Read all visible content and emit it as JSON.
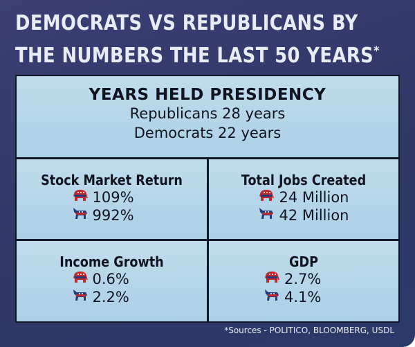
{
  "title": {
    "line1": "DEMOCRATS VS REPUBLICANS BY",
    "line2": "THE NUMBERS THE LAST 50 YEARS",
    "asterisk": "*"
  },
  "presidency": {
    "heading": "YEARS HELD PRESIDENCY",
    "republicans": "Republicans 28 years",
    "democrats": "Democrats 22 years"
  },
  "stats": [
    {
      "label": "Stock Market Return",
      "republican": "109%",
      "democrat": "992%"
    },
    {
      "label": "Total Jobs Created",
      "republican": "24 Million",
      "democrat": "42 Million"
    },
    {
      "label": "Income Growth",
      "republican": "0.6%",
      "democrat": "2.2%"
    },
    {
      "label": "GDP",
      "republican": "2.7%",
      "democrat": "4.1%"
    }
  ],
  "icons": {
    "republican": "elephant-icon",
    "democrat": "donkey-icon"
  },
  "colors": {
    "background": "#333a6c",
    "panel": "#b6d6ea",
    "red": "#c0282d",
    "blue": "#2a3a78"
  },
  "sources": "*Sources - POLITICO, BLOOMBERG, USDL"
}
